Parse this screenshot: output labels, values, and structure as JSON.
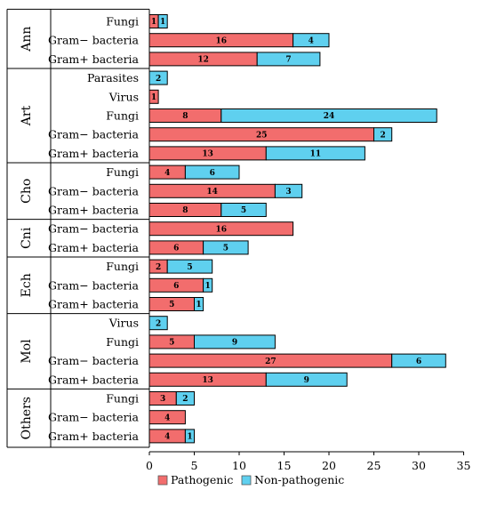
{
  "chart_data": {
    "type": "bar",
    "orientation": "horizontal",
    "stacked": true,
    "xlim": [
      0,
      35
    ],
    "x_ticks": [
      0,
      5,
      10,
      15,
      20,
      25,
      30,
      35
    ],
    "legend_position": "bottom",
    "grid": false,
    "colors": {
      "Pathogenic": "#f26d6d",
      "Non-pathogenic": "#5fd0ef"
    },
    "series_names": [
      "Pathogenic",
      "Non-pathogenic"
    ],
    "groups": [
      {
        "name": "Ann",
        "rows": [
          {
            "label": "Fungi",
            "pathogenic": 1,
            "nonpathogenic": 1
          },
          {
            "label": "Gram− bacteria",
            "pathogenic": 16,
            "nonpathogenic": 4
          },
          {
            "label": "Gram+ bacteria",
            "pathogenic": 12,
            "nonpathogenic": 7
          }
        ]
      },
      {
        "name": "Art",
        "rows": [
          {
            "label": "Parasites",
            "pathogenic": 0,
            "nonpathogenic": 2
          },
          {
            "label": "Virus",
            "pathogenic": 1,
            "nonpathogenic": 0
          },
          {
            "label": "Fungi",
            "pathogenic": 8,
            "nonpathogenic": 24
          },
          {
            "label": "Gram− bacteria",
            "pathogenic": 25,
            "nonpathogenic": 2
          },
          {
            "label": "Gram+ bacteria",
            "pathogenic": 13,
            "nonpathogenic": 11
          }
        ]
      },
      {
        "name": "Cho",
        "rows": [
          {
            "label": "Fungi",
            "pathogenic": 4,
            "nonpathogenic": 6
          },
          {
            "label": "Gram− bacteria",
            "pathogenic": 14,
            "nonpathogenic": 3
          },
          {
            "label": "Gram+ bacteria",
            "pathogenic": 8,
            "nonpathogenic": 5
          }
        ]
      },
      {
        "name": "Cni",
        "rows": [
          {
            "label": "Gram− bacteria",
            "pathogenic": 16,
            "nonpathogenic": 0
          },
          {
            "label": "Gram+ bacteria",
            "pathogenic": 6,
            "nonpathogenic": 5
          }
        ]
      },
      {
        "name": "Ech",
        "rows": [
          {
            "label": "Fungi",
            "pathogenic": 2,
            "nonpathogenic": 5
          },
          {
            "label": "Gram− bacteria",
            "pathogenic": 6,
            "nonpathogenic": 1
          },
          {
            "label": "Gram+ bacteria",
            "pathogenic": 5,
            "nonpathogenic": 1
          }
        ]
      },
      {
        "name": "Mol",
        "rows": [
          {
            "label": "Virus",
            "pathogenic": 0,
            "nonpathogenic": 2
          },
          {
            "label": "Fungi",
            "pathogenic": 5,
            "nonpathogenic": 9
          },
          {
            "label": "Gram− bacteria",
            "pathogenic": 27,
            "nonpathogenic": 6
          },
          {
            "label": "Gram+ bacteria",
            "pathogenic": 13,
            "nonpathogenic": 9
          }
        ]
      },
      {
        "name": "Others",
        "rows": [
          {
            "label": "Fungi",
            "pathogenic": 3,
            "nonpathogenic": 2
          },
          {
            "label": "Gram− bacteria",
            "pathogenic": 4,
            "nonpathogenic": 0
          },
          {
            "label": "Gram+ bacteria",
            "pathogenic": 4,
            "nonpathogenic": 1
          }
        ]
      }
    ]
  }
}
